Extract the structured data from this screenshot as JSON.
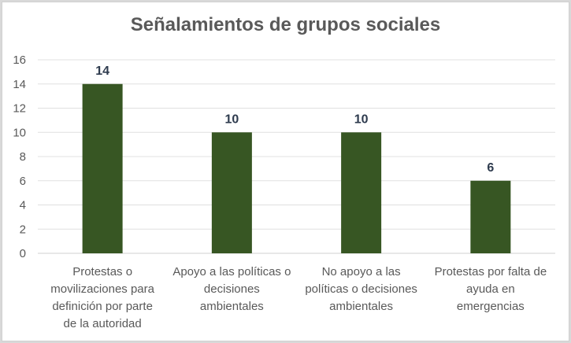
{
  "chart_data": {
    "type": "bar",
    "title": "Señalamientos de grupos sociales",
    "xlabel": "",
    "ylabel": "",
    "categories": [
      "Protestas o movilizaciones para definición por parte de la autoridad",
      "Apoyo a las políticas o decisiones ambientales",
      "No apoyo a las políticas o decisiones ambientales",
      "Protestas por falta de ayuda en emergencias"
    ],
    "category_lines": [
      [
        "Protestas o",
        "movilizaciones para",
        "definición por parte",
        "de la autoridad"
      ],
      [
        "Apoyo a las políticas o",
        "decisiones",
        "ambientales"
      ],
      [
        "No apoyo a las",
        "políticas o decisiones",
        "ambientales"
      ],
      [
        "Protestas por falta de",
        "ayuda en",
        "emergencias"
      ]
    ],
    "values": [
      14,
      10,
      10,
      6
    ],
    "data_labels": [
      "14",
      "10",
      "10",
      "6"
    ],
    "ylim": [
      0,
      16
    ],
    "yticks": [
      0,
      2,
      4,
      6,
      8,
      10,
      12,
      14,
      16
    ],
    "grid": true,
    "legend": "none",
    "bar_color": "#375623",
    "label_color": "#2e3b4e"
  }
}
